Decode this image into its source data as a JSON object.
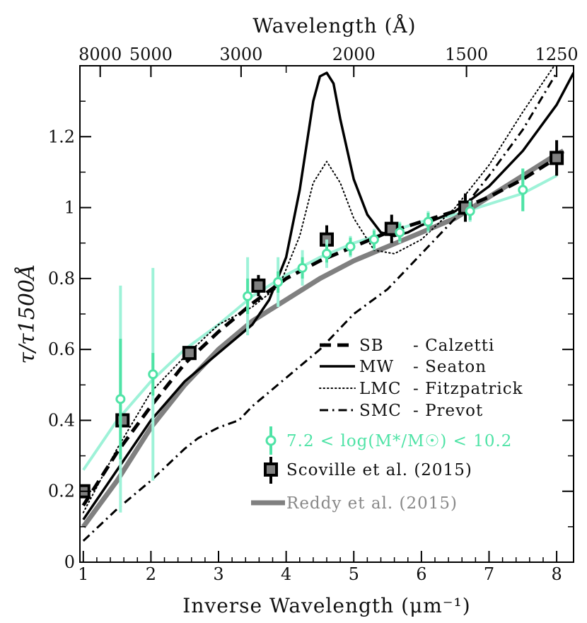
{
  "chart_data": {
    "type": "line",
    "title": "",
    "xlabel": "Inverse Wavelength (μm⁻¹)",
    "ylabel": "τ/τ1500Å",
    "top_xlabel": "Wavelength (Å)",
    "xlim": [
      0.95,
      8.25
    ],
    "ylim": [
      0,
      1.4
    ],
    "x_ticks": [
      1,
      2,
      3,
      4,
      5,
      6,
      7,
      8
    ],
    "x_tick_labels": [
      "1",
      "2",
      "3",
      "4",
      "5",
      "6",
      "7",
      "8"
    ],
    "y_ticks": [
      0,
      0.2,
      0.4,
      0.6,
      0.8,
      1,
      1.2
    ],
    "y_tick_labels": [
      "0",
      "0.2",
      "0.4",
      "0.6",
      "0.8",
      "1",
      "1.2"
    ],
    "top_ticks": [
      8000,
      5000,
      3000,
      2000,
      1500,
      1250
    ],
    "top_tick_labels": [
      "8000",
      "5000",
      "3000",
      "2000",
      "1500",
      "1250"
    ],
    "top_minor_ticks": [
      2500
    ],
    "legend_position": "bottom-right",
    "series": [
      {
        "name": "SB - Calzetti",
        "legend_label_a": "SB",
        "legend_label_b": "- Calzetti",
        "style": "dashed-thick",
        "color": "#000000",
        "x": [
          1.0,
          1.5,
          2.0,
          2.5,
          3.0,
          3.5,
          4.0,
          4.5,
          5.0,
          5.5,
          6.0,
          6.5,
          7.0,
          7.5,
          8.0
        ],
        "y": [
          0.16,
          0.31,
          0.44,
          0.56,
          0.65,
          0.73,
          0.8,
          0.85,
          0.89,
          0.93,
          0.96,
          0.99,
          1.03,
          1.08,
          1.14
        ]
      },
      {
        "name": "MW - Seaton",
        "legend_label_a": "MW",
        "legend_label_b": "- Seaton",
        "style": "solid",
        "color": "#000000",
        "x": [
          1.0,
          1.5,
          2.0,
          2.5,
          3.0,
          3.5,
          3.75,
          4.0,
          4.2,
          4.4,
          4.5,
          4.6,
          4.7,
          4.8,
          5.0,
          5.2,
          5.4,
          5.6,
          5.8,
          6.0,
          6.5,
          7.0,
          7.5,
          8.0,
          8.25
        ],
        "y": [
          0.12,
          0.26,
          0.4,
          0.51,
          0.59,
          0.67,
          0.74,
          0.86,
          1.05,
          1.3,
          1.37,
          1.38,
          1.35,
          1.25,
          1.08,
          0.98,
          0.93,
          0.92,
          0.93,
          0.95,
          0.99,
          1.06,
          1.16,
          1.29,
          1.38
        ]
      },
      {
        "name": "LMC - Fitzpatrick",
        "legend_label_a": "LMC",
        "legend_label_b": "- Fitzpatrick",
        "style": "dotted",
        "color": "#000000",
        "x": [
          1.0,
          1.5,
          2.0,
          2.5,
          3.0,
          3.5,
          3.9,
          4.2,
          4.4,
          4.6,
          4.8,
          5.0,
          5.3,
          5.6,
          6.0,
          6.5,
          7.0,
          7.5,
          8.0
        ],
        "y": [
          0.14,
          0.32,
          0.48,
          0.58,
          0.67,
          0.72,
          0.78,
          0.92,
          1.07,
          1.13,
          1.07,
          0.97,
          0.88,
          0.87,
          0.91,
          1.0,
          1.12,
          1.27,
          1.41
        ]
      },
      {
        "name": "SMC - Prevot",
        "legend_label_a": "SMC",
        "legend_label_b": "- Prevot",
        "style": "dashdot",
        "color": "#000000",
        "x": [
          1.0,
          1.5,
          2.0,
          2.5,
          2.7,
          3.0,
          3.3,
          3.5,
          4.0,
          4.5,
          5.0,
          5.5,
          6.0,
          6.5,
          7.0,
          7.5,
          8.0
        ],
        "y": [
          0.06,
          0.15,
          0.23,
          0.32,
          0.35,
          0.38,
          0.4,
          0.44,
          0.52,
          0.6,
          0.7,
          0.77,
          0.87,
          0.97,
          1.09,
          1.22,
          1.38
        ]
      },
      {
        "name": "Reddy et al. (2015)",
        "legend_label": "Reddy et al. (2015)",
        "style": "solid-thick",
        "color": "#808080",
        "x": [
          1.0,
          1.5,
          2.0,
          2.5,
          3.0,
          3.5,
          4.0,
          4.5,
          5.0,
          5.5,
          6.0,
          6.5,
          7.0,
          7.5,
          8.0,
          8.1
        ],
        "y": [
          0.1,
          0.23,
          0.38,
          0.5,
          0.6,
          0.68,
          0.74,
          0.8,
          0.85,
          0.89,
          0.93,
          0.97,
          1.03,
          1.09,
          1.15,
          1.16
        ]
      },
      {
        "name": "7.2 < log(M*/M☉) < 10.2 fit",
        "style": "solid-light",
        "color": "#9ef2d8",
        "x": [
          1.0,
          1.5,
          2.0,
          2.5,
          3.0,
          3.5,
          4.0,
          4.5,
          5.0,
          5.5,
          6.0,
          6.5,
          7.0,
          7.5,
          8.0
        ],
        "y": [
          0.26,
          0.4,
          0.51,
          0.6,
          0.67,
          0.75,
          0.81,
          0.86,
          0.9,
          0.93,
          0.96,
          0.98,
          1.01,
          1.04,
          1.09
        ]
      }
    ],
    "points": [
      {
        "name": "7.2 < log(M*/M☉) < 10.2",
        "legend_label": "7.2 < log(M*/M☉) < 10.2",
        "marker": "circle-open",
        "color": "#4fe3a6",
        "x": [
          1.55,
          2.03,
          3.43,
          3.88,
          4.24,
          4.6,
          4.95,
          5.3,
          5.68,
          6.1,
          6.72,
          7.5
        ],
        "y": [
          0.46,
          0.53,
          0.75,
          0.79,
          0.83,
          0.87,
          0.89,
          0.91,
          0.93,
          0.96,
          0.99,
          1.05
        ],
        "err_inner": [
          0.17,
          0.06,
          0.05,
          0.03,
          0.03,
          0.025,
          0.025,
          0.025,
          0.025,
          0.025,
          0.025,
          0.06
        ],
        "err_outer": [
          0.32,
          0.3,
          0.11,
          0.07,
          0.05,
          0.04,
          0.03,
          0.03,
          0.03,
          0.03,
          0.03,
          0.06
        ]
      },
      {
        "name": "Scoville et al. (2015)",
        "legend_label": "Scoville et al. (2015)",
        "marker": "square",
        "color": "#000000",
        "fill": "#808080",
        "x": [
          1.0,
          1.58,
          2.57,
          3.59,
          4.6,
          5.56,
          6.65,
          8.0
        ],
        "y": [
          0.2,
          0.4,
          0.59,
          0.78,
          0.91,
          0.94,
          1.0,
          1.14
        ],
        "err": [
          0.0,
          0.0,
          0.0,
          0.03,
          0.04,
          0.04,
          0.04,
          0.05
        ]
      }
    ]
  }
}
